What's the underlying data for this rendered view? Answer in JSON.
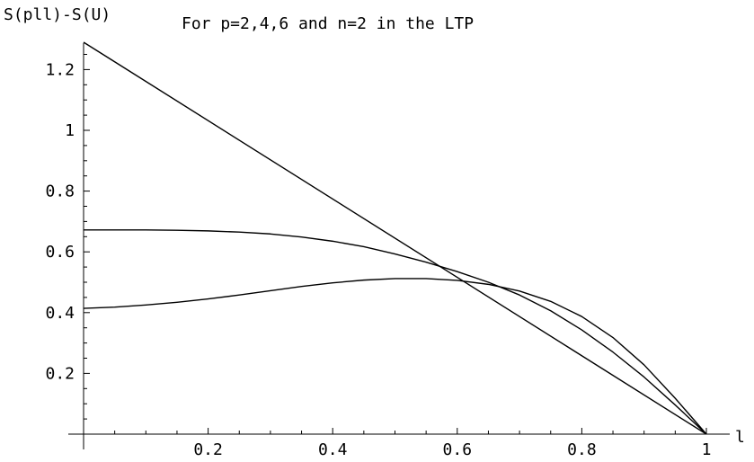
{
  "chart_data": {
    "type": "line",
    "title": "For p=2,4,6 and n=2 in the LTP",
    "ylabel": "S(pll)-S(U)",
    "xlabel": "l",
    "xlim": [
      0,
      1
    ],
    "ylim": [
      0,
      1.3
    ],
    "xticks": [
      0.2,
      0.4,
      0.6,
      0.8,
      1
    ],
    "yticks": [
      0.2,
      0.4,
      0.6,
      0.8,
      1,
      1.2
    ],
    "xtick_labels": [
      "0.2",
      "0.4",
      "0.6",
      "0.8",
      "1"
    ],
    "ytick_labels": [
      "0.2",
      "0.4",
      "0.6",
      "0.8",
      "1",
      "1.2"
    ],
    "grid": false,
    "legend": "none",
    "colors": {
      "line": "#000000",
      "axis": "#000000",
      "background": "#ffffff"
    },
    "series": [
      {
        "x": [
          0,
          1
        ],
        "y": [
          1.29,
          0
        ]
      },
      {
        "x": [
          0,
          0.05,
          0.1,
          0.15,
          0.2,
          0.25,
          0.3,
          0.35,
          0.4,
          0.45,
          0.5,
          0.55,
          0.6,
          0.65,
          0.7,
          0.75,
          0.8,
          0.85,
          0.9,
          0.95,
          1
        ],
        "y": [
          0.672,
          0.672,
          0.672,
          0.671,
          0.669,
          0.665,
          0.659,
          0.649,
          0.635,
          0.617,
          0.593,
          0.566,
          0.535,
          0.5,
          0.458,
          0.406,
          0.343,
          0.27,
          0.188,
          0.096,
          0
        ]
      },
      {
        "x": [
          0,
          0.05,
          0.1,
          0.15,
          0.2,
          0.25,
          0.3,
          0.35,
          0.4,
          0.45,
          0.5,
          0.55,
          0.6,
          0.65,
          0.7,
          0.75,
          0.8,
          0.85,
          0.9,
          0.95,
          1
        ],
        "y": [
          0.414,
          0.418,
          0.425,
          0.434,
          0.445,
          0.458,
          0.472,
          0.486,
          0.498,
          0.507,
          0.512,
          0.512,
          0.506,
          0.493,
          0.471,
          0.437,
          0.387,
          0.318,
          0.228,
          0.118,
          0
        ]
      }
    ]
  }
}
